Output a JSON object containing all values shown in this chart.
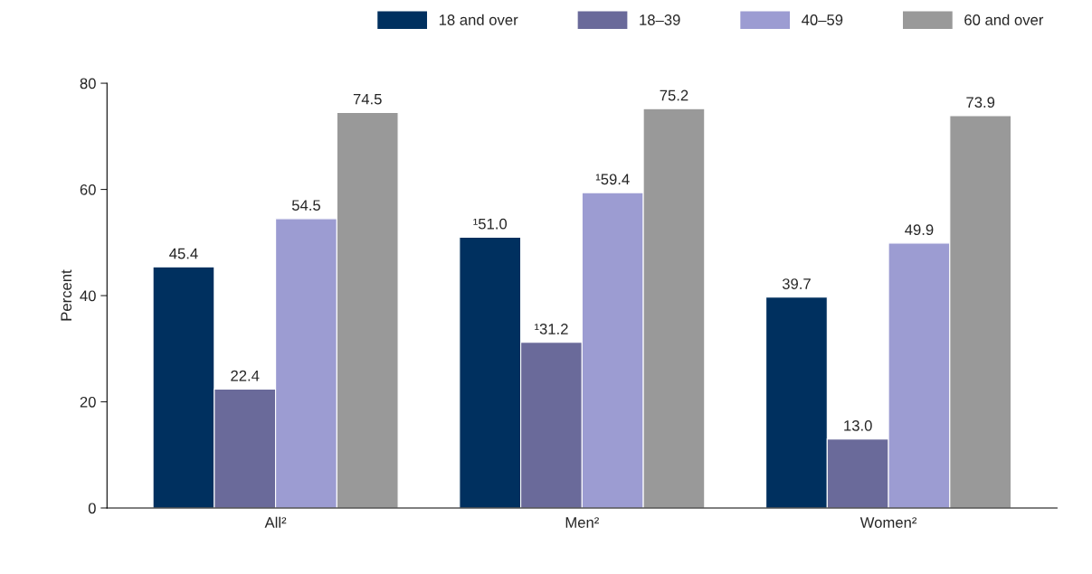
{
  "chart_data": {
    "type": "bar",
    "ylabel": "Percent",
    "categories": [
      "All²",
      "Men²",
      "Women²"
    ],
    "series": [
      {
        "name": "18 and over",
        "color": "#00305f",
        "values": [
          45.4,
          51.0,
          39.7
        ],
        "value_labels": [
          "45.4",
          "¹51.0",
          "39.7"
        ]
      },
      {
        "name": "18–39",
        "color": "#6a6a9a",
        "values": [
          22.4,
          31.2,
          13.0
        ],
        "value_labels": [
          "22.4",
          "¹31.2",
          "13.0"
        ]
      },
      {
        "name": "40–59",
        "color": "#9c9cd2",
        "values": [
          54.5,
          59.4,
          49.9
        ],
        "value_labels": [
          "54.5",
          "¹59.4",
          "49.9"
        ]
      },
      {
        "name": "60 and over",
        "color": "#999999",
        "values": [
          74.5,
          75.2,
          73.9
        ],
        "value_labels": [
          "74.5",
          "75.2",
          "73.9"
        ]
      }
    ],
    "ylim": [
      0,
      80
    ],
    "yticks": [
      0,
      20,
      40,
      60,
      80
    ],
    "grid": false,
    "legend": "top right"
  }
}
